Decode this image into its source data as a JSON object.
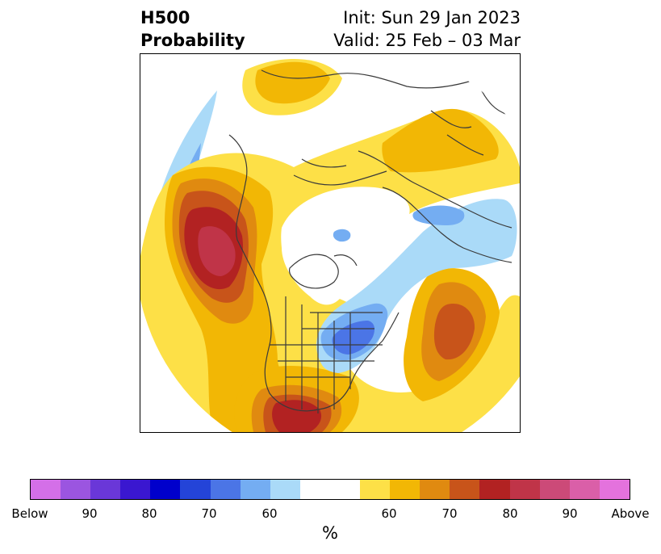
{
  "title": {
    "line1_left": "H500",
    "line2_left": "Probability",
    "line1_right": "Init: Sun 29 Jan 2023",
    "line2_right": "Valid: 25 Feb – 03 Mar"
  },
  "colorbar": {
    "colors": [
      "#d46fe8",
      "#9b55e0",
      "#6a37d8",
      "#3a17d0",
      "#0000cc",
      "#2444d8",
      "#4b75e6",
      "#74adf2",
      "#aadaf8",
      "#ffffff",
      "#ffffff",
      "#fde047",
      "#f2b705",
      "#e08a10",
      "#c8541a",
      "#b22222",
      "#c03448",
      "#cc4a78",
      "#da5fa8",
      "#e472dd"
    ],
    "tick_labels": [
      "Below",
      "90",
      "80",
      "70",
      "60",
      "60",
      "70",
      "80",
      "90",
      "Above"
    ],
    "units_label": "%"
  },
  "map": {
    "colors": {
      "yellow": "#fde047",
      "gold": "#f2b705",
      "orange": "#e08a10",
      "dark_orange": "#c8541a",
      "red": "#b22222",
      "crimson": "#c03448",
      "light_blue": "#aadaf8",
      "sky_blue": "#74adf2",
      "blue": "#4b75e6",
      "coast": "#3a3a3a"
    }
  }
}
